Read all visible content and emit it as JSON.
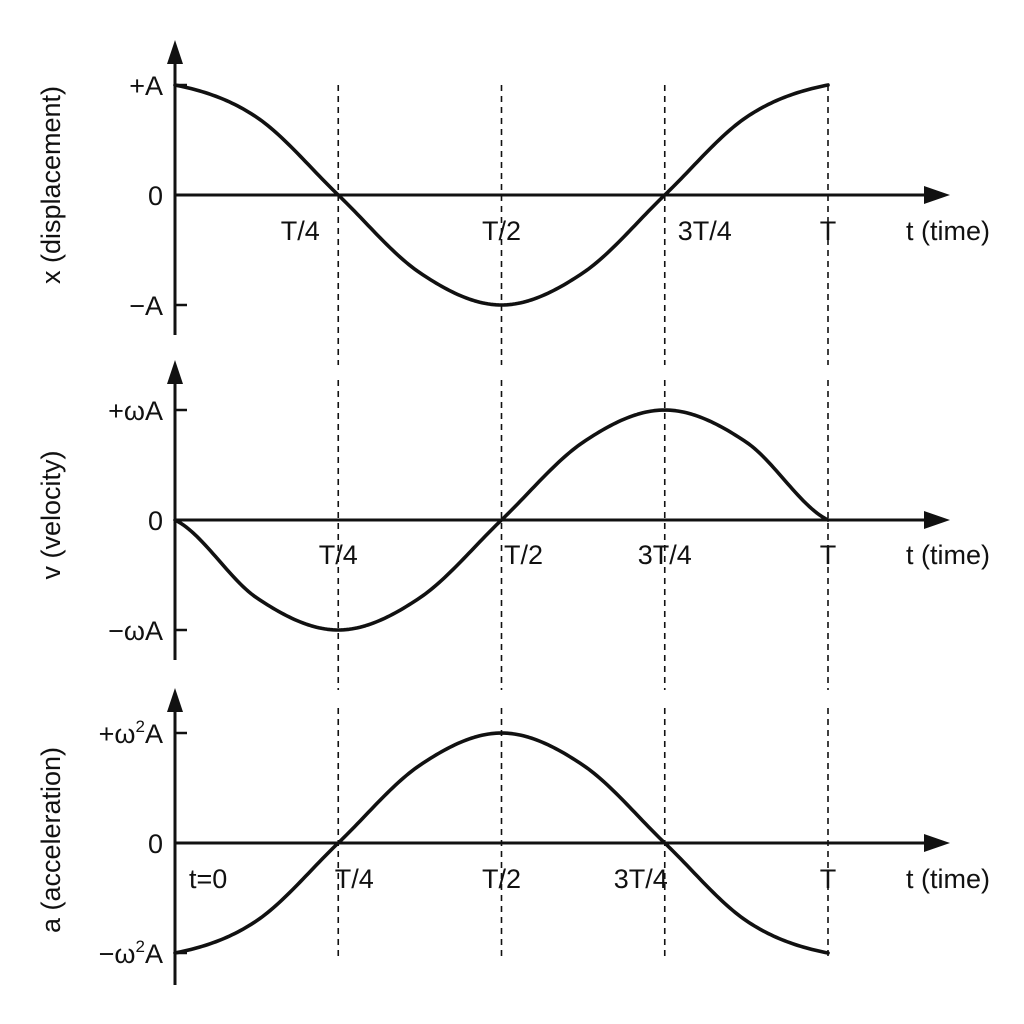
{
  "chart_data": [
    {
      "type": "line",
      "ylabel": "x (displacement)",
      "xlabel": "t (time)",
      "x_ticks": [
        {
          "label": "T/4",
          "value": 0.25
        },
        {
          "label": "T/2",
          "value": 0.5
        },
        {
          "label": "3T/4",
          "value": 0.75
        },
        {
          "label": "T",
          "value": 1.0
        }
      ],
      "y_ticks": [
        {
          "label": "+A",
          "value": 1
        },
        {
          "label": "0",
          "value": 0
        },
        {
          "label": "−A",
          "value": -1
        }
      ],
      "ylim": [
        -1,
        1
      ],
      "series": [
        {
          "x": [
            0,
            0.125,
            0.25,
            0.375,
            0.5,
            0.625,
            0.75,
            0.875,
            1
          ],
          "y": [
            1,
            0.707,
            0,
            -0.707,
            -1,
            -0.707,
            0,
            0.707,
            1
          ]
        }
      ]
    },
    {
      "type": "line",
      "ylabel": "v (velocity)",
      "xlabel": "t (time)",
      "x_ticks": [
        {
          "label": "T/4",
          "value": 0.25
        },
        {
          "label": "T/2",
          "value": 0.5
        },
        {
          "label": "3T/4",
          "value": 0.75
        },
        {
          "label": "T",
          "value": 1.0
        }
      ],
      "y_ticks": [
        {
          "label": "+ωA",
          "value": 1
        },
        {
          "label": "0",
          "value": 0
        },
        {
          "label": "−ωA",
          "value": -1
        }
      ],
      "ylim": [
        -1,
        1
      ],
      "series": [
        {
          "x": [
            0,
            0.125,
            0.25,
            0.375,
            0.5,
            0.625,
            0.75,
            0.875,
            1
          ],
          "y": [
            0,
            -0.707,
            -1,
            -0.707,
            0,
            0.707,
            1,
            0.707,
            0
          ]
        }
      ]
    },
    {
      "type": "line",
      "ylabel": "a (acceleration)",
      "xlabel": "t (time)",
      "origin_label": "t=0",
      "x_ticks": [
        {
          "label": "T/4",
          "value": 0.25
        },
        {
          "label": "T/2",
          "value": 0.5
        },
        {
          "label": "3T/4",
          "value": 0.75
        },
        {
          "label": "T",
          "value": 1.0
        }
      ],
      "y_ticks": [
        {
          "label": "+ω²A",
          "value": 1
        },
        {
          "label": "0",
          "value": 0
        },
        {
          "label": "−ω²A",
          "value": -1
        }
      ],
      "ylim": [
        -1,
        1
      ],
      "series": [
        {
          "x": [
            0,
            0.125,
            0.25,
            0.375,
            0.5,
            0.625,
            0.75,
            0.875,
            1
          ],
          "y": [
            -1,
            -0.707,
            0,
            0.707,
            1,
            0.707,
            0,
            -0.707,
            -1
          ]
        }
      ]
    }
  ]
}
